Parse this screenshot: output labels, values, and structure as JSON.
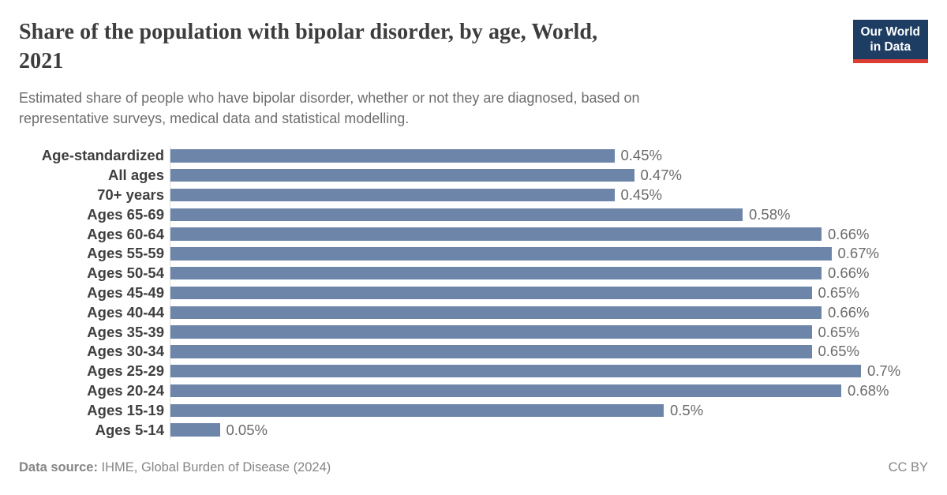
{
  "header": {
    "title_line1": "Share of the population with bipolar disorder, by age, World,",
    "title_line2": "2021",
    "subtitle_line1": "Estimated share of people who have bipolar disorder, whether or not they are diagnosed, based on",
    "subtitle_line2": "representative surveys, medical data and statistical modelling."
  },
  "logo": {
    "line1": "Our World",
    "line2": "in Data",
    "bg_color": "#1d3d63",
    "accent_color": "#dc3e34"
  },
  "chart_data": {
    "type": "bar",
    "orientation": "horizontal",
    "title": "Share of the population with bipolar disorder, by age, World, 2021",
    "xlabel": "",
    "ylabel": "",
    "unit": "%",
    "xlim": [
      0,
      0.7
    ],
    "grid": false,
    "legend": false,
    "bar_color": "#6e85aa",
    "categories": [
      "Age-standardized",
      "All ages",
      "70+ years",
      "Ages 65-69",
      "Ages 60-64",
      "Ages 55-59",
      "Ages 50-54",
      "Ages 45-49",
      "Ages 40-44",
      "Ages 35-39",
      "Ages 30-34",
      "Ages 25-29",
      "Ages 20-24",
      "Ages 15-19",
      "Ages 5-14"
    ],
    "values": [
      0.45,
      0.47,
      0.45,
      0.58,
      0.66,
      0.67,
      0.66,
      0.65,
      0.66,
      0.65,
      0.65,
      0.7,
      0.68,
      0.5,
      0.05
    ],
    "value_labels": [
      "0.45%",
      "0.47%",
      "0.45%",
      "0.58%",
      "0.66%",
      "0.67%",
      "0.66%",
      "0.65%",
      "0.66%",
      "0.65%",
      "0.65%",
      "0.7%",
      "0.68%",
      "0.5%",
      "0.05%"
    ]
  },
  "footer": {
    "datasource_label": "Data source:",
    "datasource_value": " IHME, Global Burden of Disease (2024)",
    "license": "CC BY"
  }
}
